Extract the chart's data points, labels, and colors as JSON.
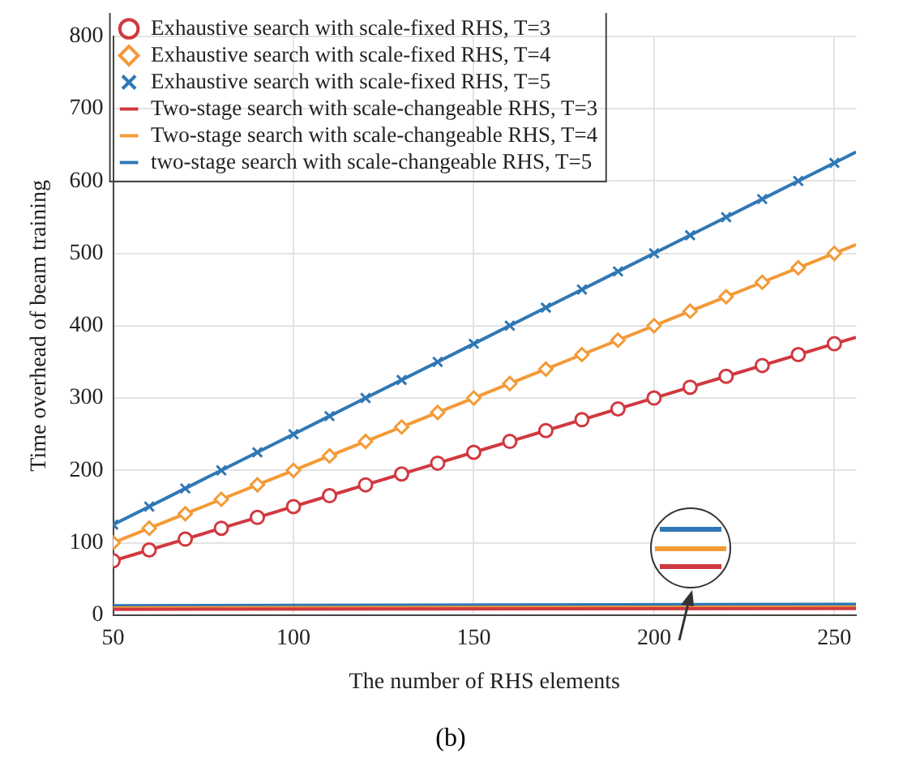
{
  "chart_data": {
    "type": "line",
    "xlabel": "The number of RHS elements",
    "ylabel": "Time overhead of beam training",
    "xlim": [
      50,
      256
    ],
    "xticks": [
      50,
      100,
      150,
      200,
      250
    ],
    "ylim": [
      0,
      800
    ],
    "yticks": [
      0,
      100,
      200,
      300,
      400,
      500,
      600,
      700,
      800
    ],
    "grid": true,
    "legend": "top left",
    "line_style": "solid",
    "annotations": [
      "(b)"
    ],
    "series": [
      {
        "name": "Exhaustive search with scale-fixed RHS, T=3",
        "color": "#d0393f",
        "marker": "circle",
        "x": [
          50,
          60,
          70,
          80,
          90,
          100,
          110,
          120,
          130,
          140,
          150,
          160,
          170,
          180,
          190,
          200,
          210,
          220,
          230,
          240,
          250,
          256
        ],
        "values": [
          75,
          90,
          105,
          120,
          135,
          150,
          165,
          180,
          195,
          210,
          225,
          240,
          255,
          270,
          285,
          300,
          315,
          330,
          345,
          360,
          375,
          384
        ]
      },
      {
        "name": "Exhaustive search with scale-fixed RHS, T=4",
        "color": "#f39a37",
        "marker": "diamond",
        "x": [
          50,
          60,
          70,
          80,
          90,
          100,
          110,
          120,
          130,
          140,
          150,
          160,
          170,
          180,
          190,
          200,
          210,
          220,
          230,
          240,
          250,
          256
        ],
        "values": [
          100,
          120,
          140,
          160,
          180,
          200,
          220,
          240,
          260,
          280,
          300,
          320,
          340,
          360,
          380,
          400,
          420,
          440,
          460,
          480,
          500,
          512
        ]
      },
      {
        "name": "Exhaustive search with scale-fixed RHS, T=5",
        "color": "#2f78b5",
        "marker": "cross",
        "x": [
          50,
          60,
          70,
          80,
          90,
          100,
          110,
          120,
          130,
          140,
          150,
          160,
          170,
          180,
          190,
          200,
          210,
          220,
          230,
          240,
          250,
          256
        ],
        "values": [
          125,
          150,
          175,
          200,
          225,
          250,
          275,
          300,
          325,
          350,
          375,
          400,
          425,
          450,
          475,
          500,
          525,
          550,
          575,
          600,
          625,
          640
        ]
      },
      {
        "name": "Two-stage search with scale-changeable RHS, T=3",
        "color": "#d0393f",
        "marker": "none",
        "x": [
          50,
          256
        ],
        "values": [
          8,
          9
        ]
      },
      {
        "name": "Two-stage search with scale-changeable RHS, T=4",
        "color": "#f39a37",
        "marker": "none",
        "x": [
          50,
          256
        ],
        "values": [
          10,
          11
        ]
      },
      {
        "name": "two-stage search with scale-changeable RHS, T=5",
        "color": "#2f78b5",
        "marker": "none",
        "x": [
          50,
          256
        ],
        "values": [
          13,
          15
        ]
      }
    ]
  }
}
